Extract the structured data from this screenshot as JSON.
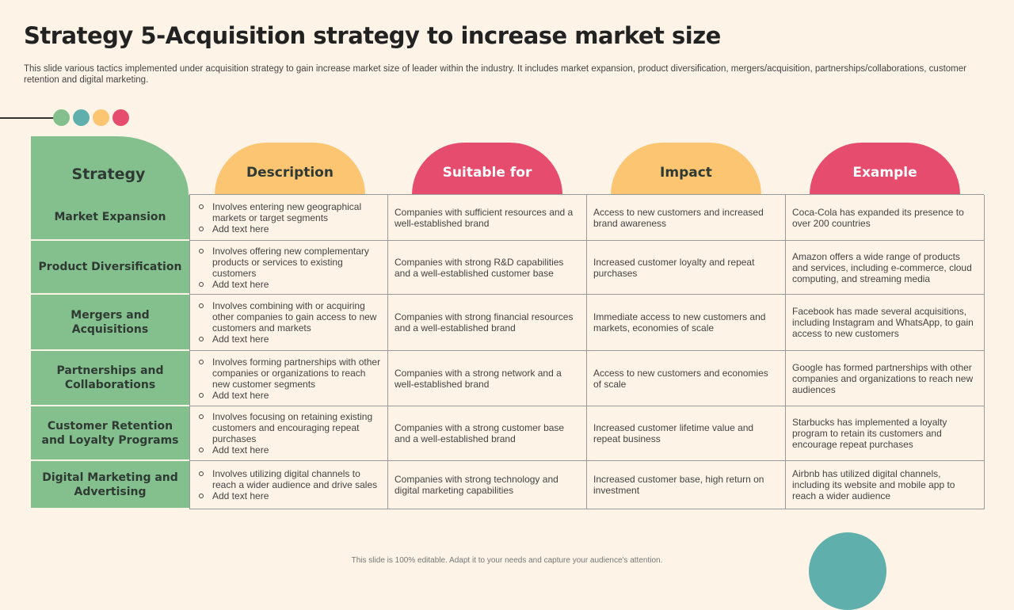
{
  "title": "Strategy 5-Acquisition strategy to increase market size",
  "subtitle": "This slide various tactics implemented under acquisition strategy to gain increase market size of leader within the industry. It includes market expansion, product diversification, mergers/acquisition, partnerships/collaborations, customer retention and digital marketing.",
  "colors": {
    "green": "#84c08e",
    "teal": "#5fb0ac",
    "yellow": "#fbc571",
    "pink": "#e64c6e",
    "background": "#fdf3e6"
  },
  "headers": {
    "strategy": "Strategy",
    "description": "Description",
    "suitable": "Suitable for",
    "impact": "Impact",
    "example": "Example"
  },
  "rows": [
    {
      "strategy": "Market Expansion",
      "description": [
        "Involves entering new geographical markets or target segments",
        "Add text here"
      ],
      "suitable": "Companies with sufficient resources and a well-established brand",
      "impact": "Access to new customers and increased brand awareness",
      "example": "Coca-Cola has expanded its presence to over 200 countries"
    },
    {
      "strategy": "Product Diversification",
      "description": [
        "Involves offering new complementary products or services to existing customers",
        "Add text here"
      ],
      "suitable": "Companies with strong R&D capabilities and a well-established customer base",
      "impact": "Increased customer loyalty and repeat purchases",
      "example": "Amazon offers a wide range of products and services, including e-commerce, cloud computing, and streaming media"
    },
    {
      "strategy": "Mergers and Acquisitions",
      "description": [
        "Involves combining with or acquiring other companies to gain access to new customers and markets",
        "Add text here"
      ],
      "suitable": "Companies with strong financial resources and a well-established brand",
      "impact": "Immediate access to new customers and markets, economies of scale",
      "example": "Facebook has made several acquisitions, including Instagram and WhatsApp, to gain access to new customers"
    },
    {
      "strategy": "Partnerships and Collaborations",
      "description": [
        "Involves forming partnerships with other companies or organizations to reach new customer segments",
        "Add text here"
      ],
      "suitable": "Companies with a strong network and a well-established brand",
      "impact": "Access to new customers and economies of scale",
      "example": "Google has formed partnerships with other companies and organizations to reach new audiences"
    },
    {
      "strategy": "Customer Retention and Loyalty Programs",
      "description": [
        "Involves focusing on retaining existing customers and encouraging repeat purchases",
        "Add text here"
      ],
      "suitable": "Companies with a strong customer base and a well-established brand",
      "impact": "Increased customer lifetime value and repeat business",
      "example": "Starbucks has implemented a loyalty program to retain its customers and encourage repeat purchases"
    },
    {
      "strategy": "Digital Marketing and Advertising",
      "description": [
        "Involves utilizing digital channels to reach a wider audience and drive sales",
        "Add text here"
      ],
      "suitable": "Companies with strong technology and digital marketing capabilities",
      "impact": "Increased customer base, high return on investment",
      "example": "Airbnb has utilized digital channels, including its website and mobile app to reach a wider audience"
    }
  ],
  "footer": "This slide is 100% editable. Adapt it to your needs and capture your audience's attention."
}
